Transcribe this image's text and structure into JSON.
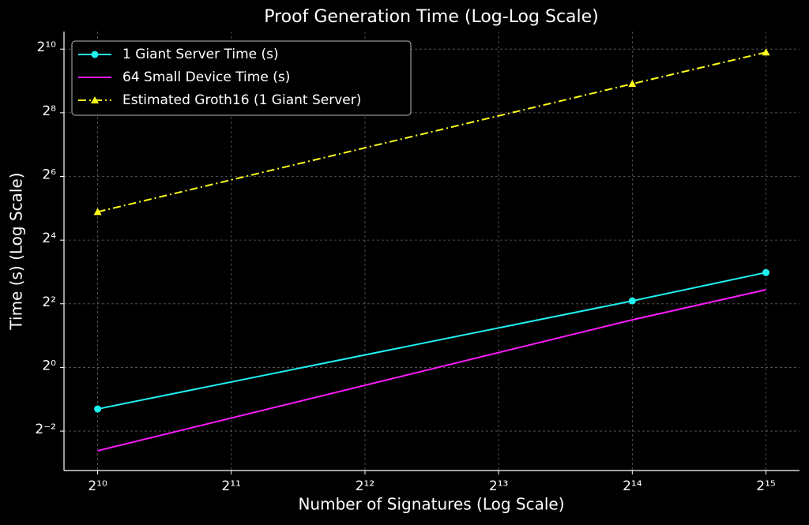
{
  "chart_data": {
    "type": "line",
    "title": "Proof Generation Time (Log-Log Scale)",
    "x_label": "Number of Signatures (Log Scale)",
    "y_label": "Time (s) (Log Scale)",
    "xscale": "log",
    "yscale": "log",
    "log_base": 2,
    "grid": true,
    "legend": "upper left",
    "x": [
      1024,
      16384,
      32768
    ],
    "xlim": [
      860,
      39000
    ],
    "ylim": [
      0.106,
      1500
    ],
    "xticks": [
      {
        "value": 1024,
        "label": "2¹⁰"
      },
      {
        "value": 2048,
        "label": "2¹¹"
      },
      {
        "value": 4096,
        "label": "2¹²"
      },
      {
        "value": 8192,
        "label": "2¹³"
      },
      {
        "value": 16384,
        "label": "2¹⁴"
      },
      {
        "value": 32768,
        "label": "2¹⁵"
      }
    ],
    "yticks": [
      {
        "value": 0.25,
        "label": "2⁻²"
      },
      {
        "value": 1,
        "label": "2⁰"
      },
      {
        "value": 4,
        "label": "2²"
      },
      {
        "value": 16,
        "label": "2⁴"
      },
      {
        "value": 64,
        "label": "2⁶"
      },
      {
        "value": 256,
        "label": "2⁸"
      },
      {
        "value": 1024,
        "label": "2¹⁰"
      }
    ],
    "series": [
      {
        "name": "1 Giant Server Time (s)",
        "color": "#1ff0f0",
        "marker": "circle",
        "linestyle": "solid",
        "values": [
          0.405,
          4.26,
          7.9
        ]
      },
      {
        "name": "64 Small Device Time (s)",
        "color": "#ff19ff",
        "marker": "none",
        "linestyle": "solid",
        "values": [
          0.163,
          2.82,
          5.43
        ]
      },
      {
        "name": "Estimated Groth16 (1 Giant Server)",
        "color": "#ffff19",
        "marker": "triangle",
        "linestyle": "dashdot",
        "values": [
          29.6,
          481,
          955
        ]
      }
    ]
  }
}
